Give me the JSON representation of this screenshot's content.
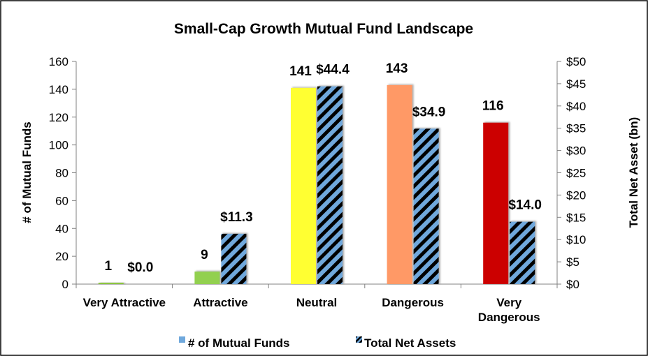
{
  "chart_data": {
    "type": "bar",
    "title": "Small-Cap Growth Mutual Fund Landscape",
    "categories": [
      "Very Attractive",
      "Attractive",
      "Neutral",
      "Dangerous",
      "Very Dangerous"
    ],
    "category_lines": [
      [
        "Very Attractive"
      ],
      [
        "Attractive"
      ],
      [
        "Neutral"
      ],
      [
        "Dangerous"
      ],
      [
        "Very",
        "Dangerous"
      ]
    ],
    "series": [
      {
        "name": "# of Mutual Funds",
        "axis": "left",
        "values": [
          1,
          9,
          141,
          143,
          116
        ],
        "labels": [
          "1",
          "9",
          "141",
          "143",
          "116"
        ],
        "colors": [
          "#8dc63f",
          "#92d050",
          "#ffff33",
          "#ff9966",
          "#cc0000"
        ]
      },
      {
        "name": "Total Net Assets",
        "axis": "right",
        "values": [
          0.0,
          11.3,
          44.4,
          34.9,
          14.0
        ],
        "labels": [
          "$0.0",
          "$11.3",
          "$44.4",
          "$34.9",
          "$14.0"
        ],
        "fill": "hatched",
        "colors": [
          "#6fa8dc",
          "#000000"
        ]
      }
    ],
    "ylabel": "# of Mutual Funds",
    "y2label": "Total Net Asset (bn)",
    "ylim": [
      0,
      160
    ],
    "y2lim": [
      0,
      50
    ],
    "yticks": [
      "0",
      "20",
      "40",
      "60",
      "80",
      "100",
      "120",
      "140",
      "160"
    ],
    "y2ticks": [
      "$0",
      "$5",
      "$10",
      "$15",
      "$20",
      "$25",
      "$30",
      "$35",
      "$40",
      "$45",
      "$50"
    ],
    "legend": {
      "placement": "bottom",
      "entries": [
        "# of Mutual Funds",
        "Total Net Assets"
      ],
      "swatch_color": "#6fa8dc"
    },
    "grid": false
  }
}
